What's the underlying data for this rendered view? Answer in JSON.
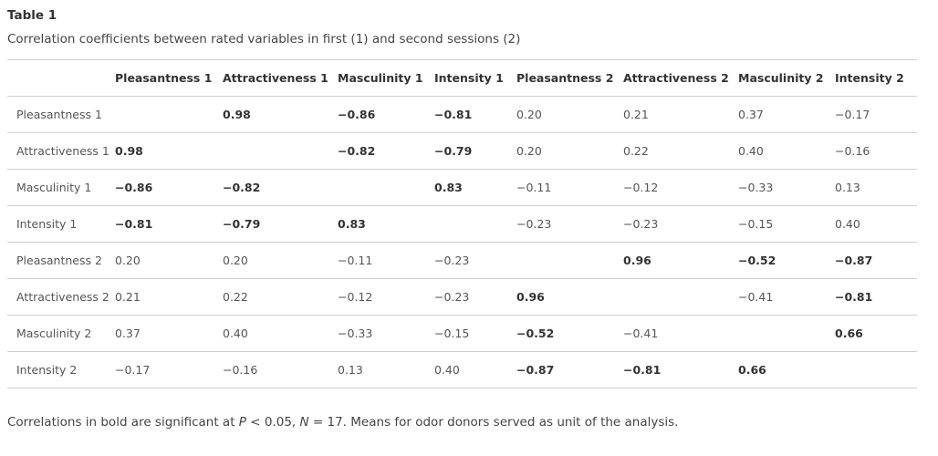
{
  "caption": {
    "title": "Table 1",
    "description": "Correlation coefficients between rated variables in first (1) and second sessions (2)"
  },
  "table": {
    "columns": [
      "Pleasantness 1",
      "Attractiveness 1",
      "Masculinity 1",
      "Intensity 1",
      "Pleasantness 2",
      "Attractiveness 2",
      "Masculinity 2",
      "Intensity 2"
    ],
    "rows": [
      {
        "label": "Pleasantness 1",
        "cells": [
          {
            "v": "",
            "b": false
          },
          {
            "v": "0.98",
            "b": true
          },
          {
            "v": "−0.86",
            "b": true
          },
          {
            "v": "−0.81",
            "b": true
          },
          {
            "v": "0.20",
            "b": false
          },
          {
            "v": "0.21",
            "b": false
          },
          {
            "v": "0.37",
            "b": false
          },
          {
            "v": "−0.17",
            "b": false
          }
        ]
      },
      {
        "label": "Attractiveness 1",
        "cells": [
          {
            "v": "0.98",
            "b": true
          },
          {
            "v": "",
            "b": false
          },
          {
            "v": "−0.82",
            "b": true
          },
          {
            "v": "−0.79",
            "b": true
          },
          {
            "v": "0.20",
            "b": false
          },
          {
            "v": "0.22",
            "b": false
          },
          {
            "v": "0.40",
            "b": false
          },
          {
            "v": "−0.16",
            "b": false
          }
        ]
      },
      {
        "label": "Masculinity 1",
        "cells": [
          {
            "v": "−0.86",
            "b": true
          },
          {
            "v": "−0.82",
            "b": true
          },
          {
            "v": "",
            "b": false
          },
          {
            "v": "0.83",
            "b": true
          },
          {
            "v": "−0.11",
            "b": false
          },
          {
            "v": "−0.12",
            "b": false
          },
          {
            "v": "−0.33",
            "b": false
          },
          {
            "v": "0.13",
            "b": false
          }
        ]
      },
      {
        "label": "Intensity 1",
        "cells": [
          {
            "v": "−0.81",
            "b": true
          },
          {
            "v": "−0.79",
            "b": true
          },
          {
            "v": "0.83",
            "b": true
          },
          {
            "v": "",
            "b": false
          },
          {
            "v": "−0.23",
            "b": false
          },
          {
            "v": "−0.23",
            "b": false
          },
          {
            "v": "−0.15",
            "b": false
          },
          {
            "v": "0.40",
            "b": false
          }
        ]
      },
      {
        "label": "Pleasantness 2",
        "cells": [
          {
            "v": "0.20",
            "b": false
          },
          {
            "v": "0.20",
            "b": false
          },
          {
            "v": "−0.11",
            "b": false
          },
          {
            "v": "−0.23",
            "b": false
          },
          {
            "v": "",
            "b": false
          },
          {
            "v": "0.96",
            "b": true
          },
          {
            "v": "−0.52",
            "b": true
          },
          {
            "v": "−0.87",
            "b": true
          }
        ]
      },
      {
        "label": "Attractiveness 2",
        "cells": [
          {
            "v": "0.21",
            "b": false
          },
          {
            "v": "0.22",
            "b": false
          },
          {
            "v": "−0.12",
            "b": false
          },
          {
            "v": "−0.23",
            "b": false
          },
          {
            "v": "0.96",
            "b": true
          },
          {
            "v": "",
            "b": false
          },
          {
            "v": "−0.41",
            "b": false
          },
          {
            "v": "−0.81",
            "b": true
          }
        ]
      },
      {
        "label": "Masculinity 2",
        "cells": [
          {
            "v": "0.37",
            "b": false
          },
          {
            "v": "0.40",
            "b": false
          },
          {
            "v": "−0.33",
            "b": false
          },
          {
            "v": "−0.15",
            "b": false
          },
          {
            "v": "−0.52",
            "b": true
          },
          {
            "v": "−0.41",
            "b": false
          },
          {
            "v": "",
            "b": false
          },
          {
            "v": "0.66",
            "b": true
          }
        ]
      },
      {
        "label": "Intensity 2",
        "cells": [
          {
            "v": "−0.17",
            "b": false
          },
          {
            "v": "−0.16",
            "b": false
          },
          {
            "v": "0.13",
            "b": false
          },
          {
            "v": "0.40",
            "b": false
          },
          {
            "v": "−0.87",
            "b": true
          },
          {
            "v": "−0.81",
            "b": true
          },
          {
            "v": "0.66",
            "b": true
          },
          {
            "v": "",
            "b": false
          }
        ]
      }
    ]
  },
  "footnote": {
    "prefix": "Correlations in bold are significant at ",
    "p_symbol": "P",
    "p_value": " < 0.05, ",
    "n_symbol": "N",
    "n_value": " = 17. Means for odor donors served as unit of the analysis."
  }
}
